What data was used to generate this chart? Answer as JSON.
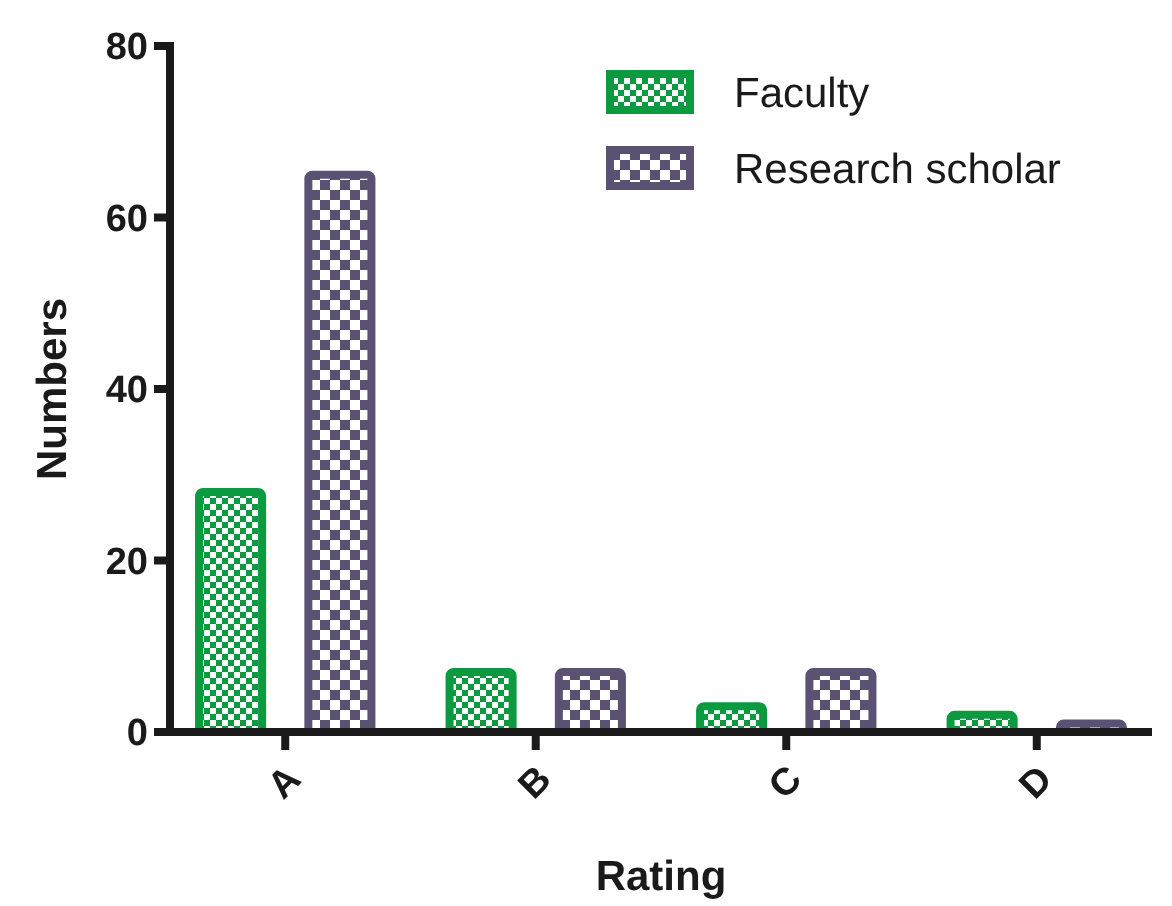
{
  "chart_data": {
    "type": "bar",
    "xlabel": "Rating",
    "ylabel": "Numbers",
    "categories": [
      "A",
      "B",
      "C",
      "D"
    ],
    "series": [
      {
        "name": "Faculty",
        "color": "#0b9a3f",
        "values": [
          28,
          7,
          3,
          2
        ]
      },
      {
        "name": "Research scholar",
        "color": "#5b5273",
        "values": [
          65,
          7,
          7,
          1
        ]
      }
    ],
    "ylim": [
      0,
      80
    ],
    "yticks": [
      0,
      20,
      40,
      60,
      80
    ],
    "legend": "top right"
  }
}
